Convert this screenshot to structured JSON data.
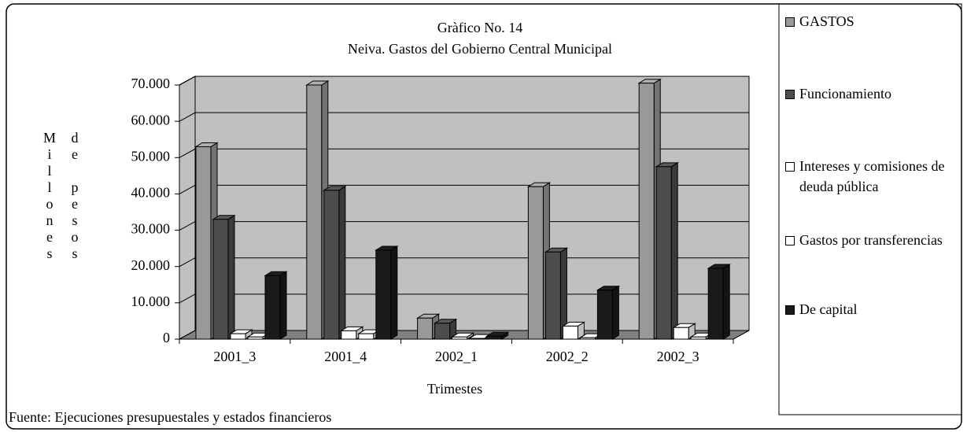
{
  "chart_data": {
    "type": "bar3d",
    "title": "Gràfico No. 14",
    "subtitle": "Neiva. Gastos del Gobierno Central Municipal",
    "y_label": [
      "Millones",
      "de pesos"
    ],
    "x_label": "Trimestes",
    "source": "Fuente: Ejecuciones presupuestales y estados financieros",
    "categories": [
      "2001_3",
      "2001_4",
      "2002_1",
      "2002_2",
      "2002_3"
    ],
    "series": [
      {
        "name": "GASTOS",
        "color": "#999999",
        "values": [
          53000,
          70000,
          5800,
          42000,
          70500
        ]
      },
      {
        "name": "Funcionamiento",
        "color": "#4d4d4d",
        "values": [
          33000,
          41000,
          4400,
          24000,
          47500
        ]
      },
      {
        "name": "Intereses y comisiones de deuda pública",
        "color": "#ffffff",
        "values": [
          1500,
          2300,
          600,
          3600,
          3200
        ]
      },
      {
        "name": "Gastos por transferencias",
        "color": "#ffffff",
        "values": [
          600,
          1500,
          200,
          400,
          600
        ]
      },
      {
        "name": "De capital",
        "color": "#1a1a1a",
        "values": [
          17500,
          24500,
          800,
          13500,
          19500
        ]
      }
    ],
    "ylim": [
      0,
      70000
    ],
    "yticks": [
      0,
      {
        "value": 10000,
        "label": "10.000"
      },
      {
        "value": 20000,
        "label": "20.000"
      },
      {
        "value": 30000,
        "label": "30.000"
      },
      {
        "value": 40000,
        "label": "40.000"
      },
      {
        "value": 50000,
        "label": "50.000"
      },
      {
        "value": 60000,
        "label": "60.000"
      },
      {
        "value": 70000,
        "label": "70.000"
      }
    ],
    "grid": true,
    "legend": "right"
  }
}
